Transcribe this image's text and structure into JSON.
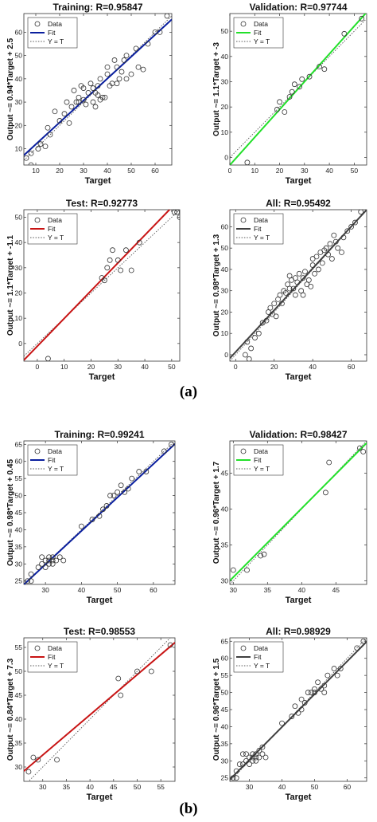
{
  "figure_labels": [
    "(a)",
    "(b)"
  ],
  "chart_data": [
    {
      "type": "scatter",
      "title": "Training: R=0.95847",
      "xlabel": "Target",
      "ylabel": "Output ~= 0.94*Target + 2.5",
      "xlim": [
        5,
        67
      ],
      "ylim": [
        3,
        68
      ],
      "xticks": [
        10,
        20,
        30,
        40,
        50,
        60
      ],
      "yticks": [
        10,
        20,
        30,
        40,
        50,
        60
      ],
      "fit": {
        "slope": 0.94,
        "intercept": 2.5,
        "color": "#0a1f9e"
      },
      "legend": [
        "Data",
        "Fit",
        "Y = T"
      ],
      "points": [
        [
          6,
          6
        ],
        [
          8,
          8
        ],
        [
          8,
          3
        ],
        [
          11,
          10
        ],
        [
          12,
          12
        ],
        [
          14,
          11
        ],
        [
          15,
          19
        ],
        [
          16,
          16
        ],
        [
          18,
          26
        ],
        [
          20,
          22
        ],
        [
          22,
          25
        ],
        [
          23,
          30
        ],
        [
          24,
          21
        ],
        [
          25,
          28
        ],
        [
          26,
          35
        ],
        [
          27,
          30
        ],
        [
          28,
          30
        ],
        [
          28,
          32
        ],
        [
          29,
          37
        ],
        [
          30,
          31
        ],
        [
          30,
          36
        ],
        [
          31,
          29
        ],
        [
          32,
          34
        ],
        [
          33,
          38
        ],
        [
          34,
          36
        ],
        [
          34,
          30
        ],
        [
          35,
          28
        ],
        [
          35,
          34
        ],
        [
          36,
          37
        ],
        [
          36,
          33
        ],
        [
          37,
          31
        ],
        [
          37,
          40
        ],
        [
          38,
          32
        ],
        [
          39,
          32
        ],
        [
          40,
          45
        ],
        [
          40,
          42
        ],
        [
          41,
          37
        ],
        [
          42,
          38
        ],
        [
          43,
          48
        ],
        [
          44,
          45
        ],
        [
          44,
          38
        ],
        [
          45,
          40
        ],
        [
          46,
          43
        ],
        [
          47,
          48
        ],
        [
          48,
          50
        ],
        [
          48,
          40
        ],
        [
          50,
          42
        ],
        [
          52,
          53
        ],
        [
          53,
          45
        ],
        [
          55,
          44
        ],
        [
          57,
          55
        ],
        [
          60,
          60
        ],
        [
          62,
          60
        ],
        [
          65,
          67
        ]
      ]
    },
    {
      "type": "scatter",
      "title": "Validation: R=0.97744",
      "xlabel": "Target",
      "ylabel": "Output ~= 1.1*Target + -3",
      "xlim": [
        0,
        55
      ],
      "ylim": [
        -3,
        57
      ],
      "xticks": [
        0,
        10,
        20,
        30,
        40,
        50
      ],
      "yticks": [
        0,
        10,
        20,
        30,
        40,
        50
      ],
      "fit": {
        "slope": 1.1,
        "intercept": -3,
        "color": "#22e02a"
      },
      "legend": [
        "Data",
        "Fit",
        "Y = T"
      ],
      "points": [
        [
          7,
          -2
        ],
        [
          19,
          19
        ],
        [
          20,
          22
        ],
        [
          22,
          18
        ],
        [
          24,
          24
        ],
        [
          25,
          26
        ],
        [
          26,
          29
        ],
        [
          28,
          28
        ],
        [
          29,
          31
        ],
        [
          32,
          32
        ],
        [
          36,
          36
        ],
        [
          38,
          35
        ],
        [
          46,
          49
        ],
        [
          53,
          55
        ]
      ]
    },
    {
      "type": "scatter",
      "title": "Test: R=0.92773",
      "xlabel": "Target",
      "ylabel": "Output ~= 1.1*Target + -1.1",
      "xlim": [
        -5,
        53
      ],
      "ylim": [
        -7,
        53
      ],
      "xticks": [
        0,
        10,
        20,
        30,
        40,
        50
      ],
      "yticks": [
        0,
        10,
        20,
        30,
        40,
        50
      ],
      "fit": {
        "slope": 1.1,
        "intercept": -1.1,
        "color": "#c81414"
      },
      "legend": [
        "Data",
        "Fit",
        "Y = T"
      ],
      "points": [
        [
          4,
          -6
        ],
        [
          24,
          26
        ],
        [
          25,
          25
        ],
        [
          26,
          30
        ],
        [
          27,
          33
        ],
        [
          28,
          37
        ],
        [
          30,
          33
        ],
        [
          31,
          29
        ],
        [
          33,
          37
        ],
        [
          35,
          29
        ],
        [
          38,
          40
        ],
        [
          51,
          52
        ],
        [
          52,
          52
        ],
        [
          53,
          50
        ]
      ]
    },
    {
      "type": "scatter",
      "title": "All: R=0.95492",
      "xlabel": "Target",
      "ylabel": "Output ~= 0.98*Target + 1.3",
      "xlim": [
        -3,
        68
      ],
      "ylim": [
        -3,
        68
      ],
      "xticks": [
        0,
        20,
        40,
        60
      ],
      "yticks": [
        0,
        10,
        20,
        30,
        40,
        50,
        60
      ],
      "fit": {
        "slope": 0.98,
        "intercept": 1.3,
        "color": "#404040"
      },
      "legend": [
        "Data",
        "Fit",
        "Y = T"
      ],
      "points": [
        [
          5,
          0
        ],
        [
          6,
          6
        ],
        [
          7,
          -2
        ],
        [
          8,
          3
        ],
        [
          10,
          8
        ],
        [
          12,
          10
        ],
        [
          14,
          15
        ],
        [
          16,
          16
        ],
        [
          17,
          20
        ],
        [
          18,
          22
        ],
        [
          19,
          19
        ],
        [
          20,
          24
        ],
        [
          21,
          18
        ],
        [
          22,
          26
        ],
        [
          23,
          28
        ],
        [
          24,
          24
        ],
        [
          25,
          30
        ],
        [
          26,
          29
        ],
        [
          27,
          33
        ],
        [
          28,
          31
        ],
        [
          28,
          37
        ],
        [
          29,
          35
        ],
        [
          30,
          31
        ],
        [
          31,
          36
        ],
        [
          31,
          28
        ],
        [
          32,
          34
        ],
        [
          33,
          38
        ],
        [
          34,
          30
        ],
        [
          35,
          36
        ],
        [
          35,
          28
        ],
        [
          36,
          39
        ],
        [
          37,
          33
        ],
        [
          38,
          35
        ],
        [
          39,
          32
        ],
        [
          40,
          42
        ],
        [
          40,
          45
        ],
        [
          41,
          38
        ],
        [
          42,
          46
        ],
        [
          43,
          40
        ],
        [
          44,
          48
        ],
        [
          45,
          43
        ],
        [
          46,
          49
        ],
        [
          47,
          50
        ],
        [
          48,
          47
        ],
        [
          49,
          52
        ],
        [
          50,
          45
        ],
        [
          51,
          56
        ],
        [
          52,
          53
        ],
        [
          53,
          50
        ],
        [
          55,
          48
        ],
        [
          56,
          55
        ],
        [
          58,
          58
        ],
        [
          60,
          60
        ],
        [
          62,
          62
        ],
        [
          65,
          67
        ]
      ]
    },
    {
      "type": "scatter",
      "title": "Training: R=0.99241",
      "xlabel": "Target",
      "ylabel": "Output ~= 0.98*Target + 0.45",
      "xlim": [
        24,
        66
      ],
      "ylim": [
        24,
        66
      ],
      "xticks": [
        30,
        40,
        50,
        60
      ],
      "yticks": [
        25,
        30,
        35,
        40,
        45,
        50,
        55,
        60,
        65
      ],
      "fit": {
        "slope": 0.98,
        "intercept": 0.45,
        "color": "#0a1f9e"
      },
      "legend": [
        "Data",
        "Fit",
        "Y = T"
      ],
      "points": [
        [
          25,
          25
        ],
        [
          26,
          25
        ],
        [
          26,
          27
        ],
        [
          28,
          29
        ],
        [
          29,
          30
        ],
        [
          29,
          32
        ],
        [
          30,
          31
        ],
        [
          30,
          29
        ],
        [
          31,
          31
        ],
        [
          31,
          32
        ],
        [
          31,
          30
        ],
        [
          32,
          31
        ],
        [
          32,
          32
        ],
        [
          32,
          30
        ],
        [
          33,
          31
        ],
        [
          34,
          32
        ],
        [
          35,
          31
        ],
        [
          40,
          41
        ],
        [
          43,
          43
        ],
        [
          45,
          44
        ],
        [
          46,
          46
        ],
        [
          47,
          47
        ],
        [
          48,
          50
        ],
        [
          49,
          50
        ],
        [
          50,
          51
        ],
        [
          51,
          53
        ],
        [
          52,
          51
        ],
        [
          53,
          52
        ],
        [
          54,
          55
        ],
        [
          56,
          57
        ],
        [
          58,
          57
        ],
        [
          63,
          63
        ],
        [
          65,
          65
        ]
      ]
    },
    {
      "type": "scatter",
      "title": "Validation: R=0.98427",
      "xlabel": "Target",
      "ylabel": "Output ~= 0.96*Target + 1.7",
      "xlim": [
        29.5,
        49.5
      ],
      "ylim": [
        29.5,
        49.5
      ],
      "xticks": [
        30,
        35,
        40,
        45
      ],
      "yticks": [
        30,
        35,
        40,
        45
      ],
      "fit": {
        "slope": 0.96,
        "intercept": 1.7,
        "color": "#22e02a"
      },
      "legend": [
        "Data",
        "Fit",
        "Y = T"
      ],
      "points": [
        [
          30,
          31.5
        ],
        [
          32,
          31.5
        ],
        [
          34,
          33.5
        ],
        [
          34.5,
          33.7
        ],
        [
          43.5,
          42.3
        ],
        [
          44,
          46.5
        ],
        [
          48.5,
          48.5
        ],
        [
          49,
          48
        ]
      ]
    },
    {
      "type": "scatter",
      "title": "Test: R=0.98553",
      "xlabel": "Target",
      "ylabel": "Output ~= 0.84*Target + 7.3",
      "xlim": [
        26,
        58
      ],
      "ylim": [
        27,
        57
      ],
      "xticks": [
        30,
        35,
        40,
        45,
        50,
        55
      ],
      "yticks": [
        30,
        35,
        40,
        45,
        50,
        55
      ],
      "fit": {
        "slope": 0.84,
        "intercept": 7.3,
        "color": "#c81414"
      },
      "legend": [
        "Data",
        "Fit",
        "Y = T"
      ],
      "points": [
        [
          27,
          29
        ],
        [
          28,
          32
        ],
        [
          29,
          31.5
        ],
        [
          33,
          31.5
        ],
        [
          46,
          48.5
        ],
        [
          46.5,
          45
        ],
        [
          50,
          50
        ],
        [
          53,
          50
        ],
        [
          57,
          55.5
        ]
      ]
    },
    {
      "type": "scatter",
      "title": "All: R=0.98929",
      "xlabel": "Target",
      "ylabel": "Output ~= 0.96*Target + 1.5",
      "xlim": [
        24,
        66
      ],
      "ylim": [
        24,
        66
      ],
      "xticks": [
        30,
        40,
        50,
        60
      ],
      "yticks": [
        25,
        30,
        35,
        40,
        45,
        50,
        55,
        60,
        65
      ],
      "fit": {
        "slope": 0.96,
        "intercept": 1.5,
        "color": "#404040"
      },
      "legend": [
        "Data",
        "Fit",
        "Y = T"
      ],
      "points": [
        [
          25,
          25
        ],
        [
          26,
          25
        ],
        [
          26,
          27
        ],
        [
          27,
          29
        ],
        [
          28,
          32
        ],
        [
          28,
          29
        ],
        [
          29,
          30
        ],
        [
          29,
          32
        ],
        [
          30,
          31
        ],
        [
          30,
          29
        ],
        [
          31,
          31
        ],
        [
          31,
          32
        ],
        [
          31,
          30
        ],
        [
          32,
          31
        ],
        [
          32,
          32
        ],
        [
          32,
          30
        ],
        [
          33,
          31
        ],
        [
          33,
          33
        ],
        [
          34,
          32
        ],
        [
          34,
          34
        ],
        [
          35,
          31
        ],
        [
          40,
          41
        ],
        [
          43,
          43
        ],
        [
          44,
          46
        ],
        [
          45,
          44
        ],
        [
          46,
          48
        ],
        [
          46,
          45
        ],
        [
          47,
          47
        ],
        [
          48,
          50
        ],
        [
          49,
          50
        ],
        [
          50,
          51
        ],
        [
          50,
          50
        ],
        [
          51,
          53
        ],
        [
          52,
          51
        ],
        [
          53,
          52
        ],
        [
          53,
          50
        ],
        [
          54,
          55
        ],
        [
          56,
          57
        ],
        [
          57,
          55
        ],
        [
          58,
          57
        ],
        [
          63,
          63
        ],
        [
          65,
          65
        ]
      ]
    }
  ]
}
